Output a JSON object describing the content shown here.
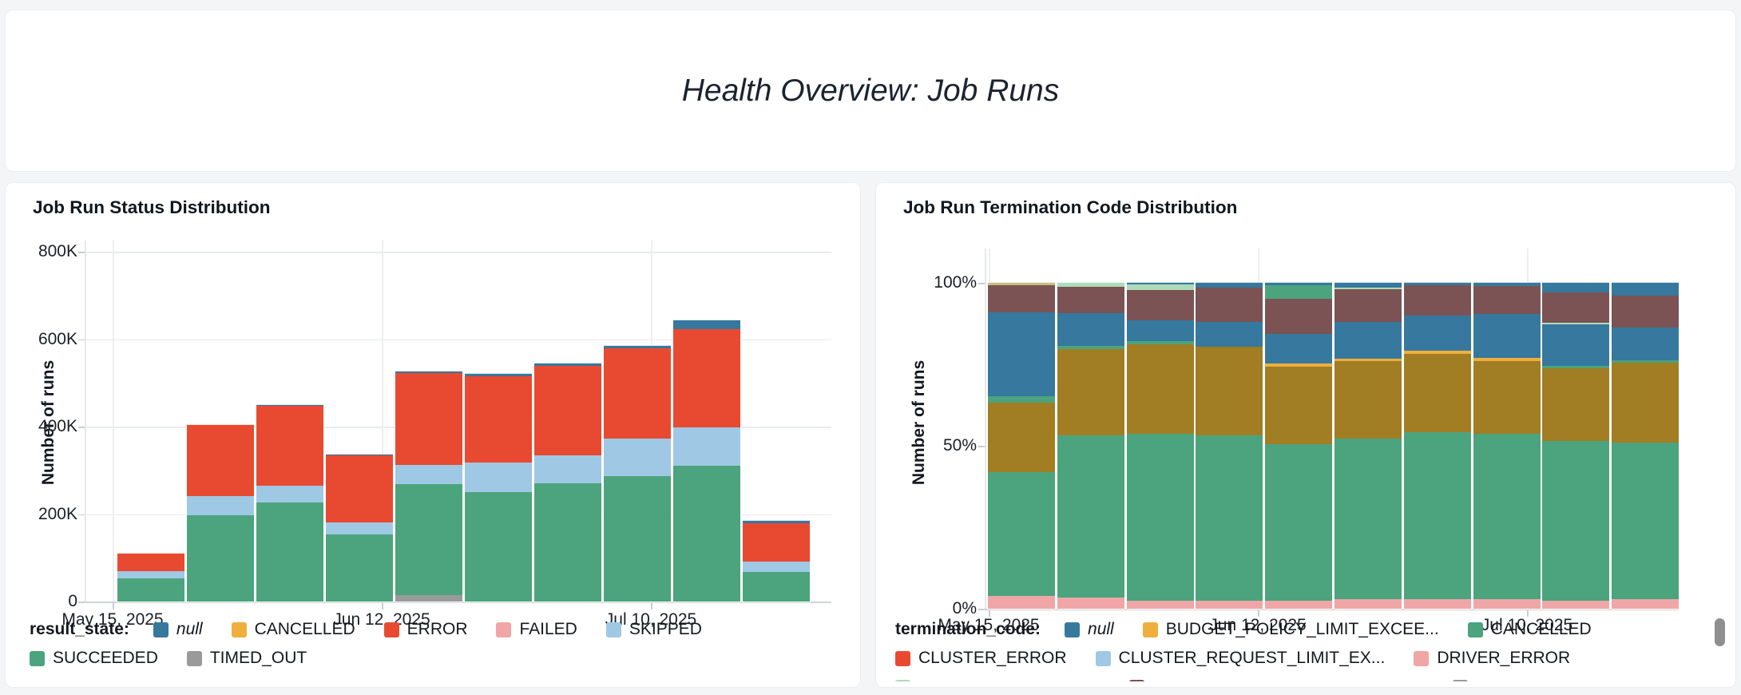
{
  "header": {
    "title": "Health Overview: Job Runs"
  },
  "colors": {
    "null": "#36789E",
    "cancelled_result": "#EFAF3C",
    "error": "#E84A31",
    "failed": "#F0A6A6",
    "skipped": "#9FC8E4",
    "succeeded": "#4BA47D",
    "timed_out": "#9A9A9A",
    "olive_code": "#A17D24",
    "maroon_code": "#7B5354",
    "mint_code": "#AEDCB8",
    "khaki_code": "#C8C17E",
    "scrollbar": "#8F8F8F"
  },
  "chart_data": [
    {
      "type": "bar",
      "stacked": true,
      "title": "Job Run Status Distribution",
      "ylabel": "Number of runs",
      "unit": "thousands of runs",
      "ylim_thousands": [
        0,
        800
      ],
      "y_ticks": [
        {
          "label": "0",
          "value": 0
        },
        {
          "label": "200K",
          "value": 200
        },
        {
          "label": "400K",
          "value": 400
        },
        {
          "label": "600K",
          "value": 600
        },
        {
          "label": "800K",
          "value": 800
        }
      ],
      "x_tick_labels": [
        "May 15, 2025",
        "Jun 12, 2025",
        "Jul 10, 2025"
      ],
      "legend_title": "result_state:",
      "series": [
        {
          "name": "TIMED_OUT",
          "color": "#9A9A9A",
          "values": [
            0,
            0,
            0,
            0,
            15,
            0,
            0,
            0,
            0,
            0
          ]
        },
        {
          "name": "SUCCEEDED",
          "color": "#4BA47D",
          "values": [
            53,
            197,
            227,
            154,
            253,
            251,
            270,
            287,
            310,
            68
          ]
        },
        {
          "name": "SKIPPED",
          "color": "#9FC8E4",
          "values": [
            16,
            44,
            37,
            26,
            45,
            66,
            65,
            85,
            88,
            23
          ]
        },
        {
          "name": "FAILED",
          "color": "#F0A6A6",
          "values": [
            0,
            0,
            0,
            0,
            0,
            0,
            0,
            0,
            0,
            0
          ]
        },
        {
          "name": "ERROR",
          "color": "#E84A31",
          "values": [
            40,
            163,
            184,
            154,
            210,
            198,
            204,
            207,
            224,
            88
          ]
        },
        {
          "name": "CANCELLED",
          "color": "#EFAF3C",
          "values": [
            0,
            0,
            0,
            0,
            0,
            0,
            0,
            0,
            0,
            0
          ]
        },
        {
          "name": "null",
          "color": "#36789E",
          "values": [
            0,
            0,
            2,
            2,
            3,
            5,
            5,
            5,
            21,
            5
          ]
        }
      ],
      "legend_rows": [
        [
          {
            "label": "null",
            "color": "#36789E",
            "italic": true
          },
          {
            "label": "CANCELLED",
            "color": "#EFAF3C"
          },
          {
            "label": "ERROR",
            "color": "#E84A31"
          },
          {
            "label": "FAILED",
            "color": "#F0A6A6"
          },
          {
            "label": "SKIPPED",
            "color": "#9FC8E4"
          }
        ],
        [
          {
            "label": "SUCCEEDED",
            "color": "#4BA47D"
          },
          {
            "label": "TIMED_OUT",
            "color": "#9A9A9A"
          }
        ]
      ]
    },
    {
      "type": "bar",
      "stacked": true,
      "normalized_percent": true,
      "title": "Job Run Termination Code Distribution",
      "ylabel": "Number of runs",
      "ylim": [
        0,
        100
      ],
      "y_ticks": [
        {
          "label": "0%",
          "value": 0
        },
        {
          "label": "50%",
          "value": 50
        },
        {
          "label": "100%",
          "value": 100
        }
      ],
      "x_tick_labels": [
        "May 15, 2025",
        "Jun 12, 2025",
        "Jul 10, 2025"
      ],
      "legend_title": "termination_code:",
      "bars_segments_bottom_to_top_pct": [
        [
          [
            "#F0A6A6",
            4.0
          ],
          [
            "#4BA47D",
            37.8
          ],
          [
            "#A17D24",
            21.5
          ],
          [
            "#4BA47D",
            2.0
          ],
          [
            "#36789E",
            25.7
          ],
          [
            "#7B5354",
            8.3
          ],
          [
            "#C8C17E",
            0.7
          ]
        ],
        [
          [
            "#F0A6A6",
            3.5
          ],
          [
            "#4BA47D",
            49.7
          ],
          [
            "#A17D24",
            26.5
          ],
          [
            "#4BA47D",
            1.0
          ],
          [
            "#36789E",
            10.0
          ],
          [
            "#7B5354",
            8.0
          ],
          [
            "#AEDCB8",
            1.3
          ]
        ],
        [
          [
            "#F0A6A6",
            2.5
          ],
          [
            "#4BA47D",
            51.1
          ],
          [
            "#A17D24",
            27.6
          ],
          [
            "#4BA47D",
            1.0
          ],
          [
            "#36789E",
            6.3
          ],
          [
            "#7B5354",
            9.3
          ],
          [
            "#AEDCB8",
            1.7
          ],
          [
            "#36789E",
            0.5
          ]
        ],
        [
          [
            "#F0A6A6",
            2.5
          ],
          [
            "#4BA47D",
            50.7
          ],
          [
            "#A17D24",
            27.1
          ],
          [
            "#36789E",
            7.7
          ],
          [
            "#7B5354",
            10.5
          ],
          [
            "#36789E",
            1.5
          ]
        ],
        [
          [
            "#F0A6A6",
            2.5
          ],
          [
            "#4BA47D",
            48.1
          ],
          [
            "#A17D24",
            23.6
          ],
          [
            "#EFAF3C",
            1.0
          ],
          [
            "#36789E",
            9.0
          ],
          [
            "#7B5354",
            11.0
          ],
          [
            "#4BA47D",
            4.0
          ],
          [
            "#36789E",
            0.8
          ]
        ],
        [
          [
            "#F0A6A6",
            3.0
          ],
          [
            "#4BA47D",
            49.3
          ],
          [
            "#A17D24",
            23.7
          ],
          [
            "#EFAF3C",
            0.8
          ],
          [
            "#36789E",
            11.2
          ],
          [
            "#7B5354",
            10.0
          ],
          [
            "#AEDCB8",
            0.5
          ],
          [
            "#36789E",
            1.5
          ]
        ],
        [
          [
            "#F0A6A6",
            3.0
          ],
          [
            "#4BA47D",
            51.1
          ],
          [
            "#A17D24",
            24.1
          ],
          [
            "#EFAF3C",
            1.0
          ],
          [
            "#36789E",
            10.8
          ],
          [
            "#7B5354",
            9.2
          ],
          [
            "#36789E",
            0.8
          ]
        ],
        [
          [
            "#F0A6A6",
            3.0
          ],
          [
            "#4BA47D",
            50.6
          ],
          [
            "#A17D24",
            22.4
          ],
          [
            "#EFAF3C",
            1.0
          ],
          [
            "#36789E",
            13.4
          ],
          [
            "#7B5354",
            8.6
          ],
          [
            "#36789E",
            1.0
          ]
        ],
        [
          [
            "#F0A6A6",
            2.5
          ],
          [
            "#4BA47D",
            48.9
          ],
          [
            "#A17D24",
            22.4
          ],
          [
            "#4BA47D",
            0.7
          ],
          [
            "#36789E",
            12.7
          ],
          [
            "#AEDCB8",
            0.5
          ],
          [
            "#7B5354",
            9.3
          ],
          [
            "#36789E",
            3.0
          ]
        ],
        [
          [
            "#F0A6A6",
            3.0
          ],
          [
            "#4BA47D",
            48.0
          ],
          [
            "#A17D24",
            24.5
          ],
          [
            "#4BA47D",
            0.7
          ],
          [
            "#36789E",
            10.0
          ],
          [
            "#7B5354",
            10.0
          ],
          [
            "#36789E",
            3.8
          ]
        ]
      ],
      "legend_rows": [
        [
          {
            "label": "null",
            "color": "#36789E",
            "italic": true
          },
          {
            "label": "BUDGET_POLICY_LIMIT_EXCEE...",
            "color": "#EFAF3C"
          },
          {
            "label": "CANCELLED",
            "color": "#4BA47D"
          }
        ],
        [
          {
            "label": "CLUSTER_ERROR",
            "color": "#E84A31"
          },
          {
            "label": "CLUSTER_REQUEST_LIMIT_EX...",
            "color": "#9FC8E4"
          },
          {
            "label": "DRIVER_ERROR",
            "color": "#F0A6A6"
          }
        ],
        [
          {
            "label": "",
            "color": "#AEDCB8"
          },
          {
            "label": "",
            "color": "#7B5354"
          },
          {
            "label": "",
            "color": "#9A9A9A"
          }
        ]
      ]
    }
  ]
}
